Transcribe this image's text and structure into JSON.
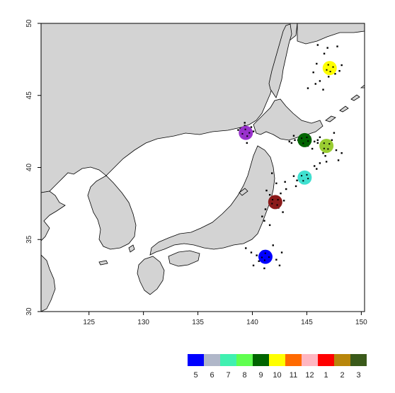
{
  "map": {
    "colors": {
      "land": "#d3d3d3",
      "coast": "#000000",
      "sea": "#ffffff",
      "frame": "#000000"
    },
    "lon_range": [
      120.6,
      150.3
    ],
    "lat_range": [
      30,
      50
    ],
    "x_ticks": [
      {
        "value": 125,
        "label": "125"
      },
      {
        "value": 130,
        "label": "130"
      },
      {
        "value": 135,
        "label": "135"
      },
      {
        "value": 140,
        "label": "140"
      },
      {
        "value": 145,
        "label": "145"
      },
      {
        "value": 150,
        "label": "150"
      }
    ],
    "y_ticks": [
      {
        "value": 30,
        "label": "30"
      },
      {
        "value": 35,
        "label": "35"
      },
      {
        "value": 40,
        "label": "40"
      },
      {
        "value": 45,
        "label": "45"
      },
      {
        "value": 50,
        "label": "50"
      }
    ],
    "centroids": [
      {
        "month": "5",
        "color": "#0000ff",
        "lon": 141.2,
        "lat": 33.8
      },
      {
        "month": "8",
        "color": "#9acd32",
        "lon": 146.8,
        "lat": 41.5
      },
      {
        "month": "7",
        "color": "#40e0d0",
        "lon": 144.8,
        "lat": 39.3
      },
      {
        "month": "9",
        "color": "#006400",
        "lon": 144.8,
        "lat": 41.9
      },
      {
        "month": "10",
        "color": "#ffff00",
        "lon": 147.1,
        "lat": 46.9
      },
      {
        "month": "1",
        "color": "#8b1a1a",
        "lon": 142.1,
        "lat": 37.6
      },
      {
        "month": "12",
        "color": "#9932cc",
        "lon": 139.4,
        "lat": 42.4
      }
    ],
    "points": [
      [
        147.0,
        46.3
      ],
      [
        147.6,
        46.5
      ],
      [
        146.2,
        46.0
      ],
      [
        145.8,
        45.8
      ],
      [
        148.2,
        47.1
      ],
      [
        146.6,
        47.9
      ],
      [
        145.9,
        47.2
      ],
      [
        146.9,
        48.3
      ],
      [
        147.8,
        48.4
      ],
      [
        145.1,
        45.5
      ],
      [
        145.6,
        46.6
      ],
      [
        146.5,
        45.4
      ],
      [
        148.0,
        46.7
      ],
      [
        146.0,
        48.5
      ],
      [
        138.9,
        42.7
      ],
      [
        139.1,
        42.3
      ],
      [
        139.7,
        42.1
      ],
      [
        139.3,
        42.9
      ],
      [
        139.9,
        42.8
      ],
      [
        138.7,
        42.6
      ],
      [
        140.1,
        42.5
      ],
      [
        139.5,
        41.7
      ],
      [
        139.3,
        43.1
      ],
      [
        143.9,
        41.9
      ],
      [
        143.6,
        41.7
      ],
      [
        144.2,
        41.9
      ],
      [
        145.3,
        42.1
      ],
      [
        145.7,
        41.8
      ],
      [
        143.8,
        42.2
      ],
      [
        144.6,
        41.6
      ],
      [
        143.4,
        41.8
      ],
      [
        145.1,
        41.5
      ],
      [
        146.0,
        41.9
      ],
      [
        146.0,
        41.7
      ],
      [
        146.5,
        41.0
      ],
      [
        147.3,
        41.9
      ],
      [
        147.7,
        41.2
      ],
      [
        148.2,
        41.0
      ],
      [
        146.2,
        42.1
      ],
      [
        147.5,
        42.4
      ],
      [
        146.7,
        40.8
      ],
      [
        145.5,
        41.3
      ],
      [
        147.9,
        40.5
      ],
      [
        144.1,
        39.1
      ],
      [
        144.6,
        38.9
      ],
      [
        145.3,
        39.5
      ],
      [
        145.7,
        40.1
      ],
      [
        146.2,
        40.3
      ],
      [
        144.0,
        38.7
      ],
      [
        143.8,
        39.4
      ],
      [
        146.8,
        40.4
      ],
      [
        145.9,
        39.9
      ],
      [
        141.3,
        38.4
      ],
      [
        141.6,
        38.1
      ],
      [
        141.9,
        37.9
      ],
      [
        142.4,
        37.2
      ],
      [
        142.8,
        36.9
      ],
      [
        141.2,
        37.1
      ],
      [
        140.9,
        36.6
      ],
      [
        141.6,
        36.0
      ],
      [
        141.1,
        36.3
      ],
      [
        142.6,
        38.2
      ],
      [
        142.9,
        37.7
      ],
      [
        143.1,
        38.5
      ],
      [
        142.2,
        38.9
      ],
      [
        143.0,
        39.0
      ],
      [
        141.8,
        39.6
      ],
      [
        141.0,
        34.2
      ],
      [
        141.6,
        34.0
      ],
      [
        140.4,
        33.9
      ],
      [
        142.2,
        33.6
      ],
      [
        142.5,
        33.2
      ],
      [
        140.6,
        33.5
      ],
      [
        139.9,
        34.1
      ],
      [
        141.9,
        34.6
      ],
      [
        142.7,
        34.1
      ],
      [
        139.4,
        34.4
      ],
      [
        141.1,
        33.0
      ],
      [
        140.1,
        33.2
      ]
    ]
  },
  "legend": {
    "items": [
      {
        "label": "5",
        "color": "#0000ff"
      },
      {
        "label": "6",
        "color": "#b0b7c9"
      },
      {
        "label": "7",
        "color": "#40f0b0"
      },
      {
        "label": "8",
        "color": "#60ff50"
      },
      {
        "label": "9",
        "color": "#006400"
      },
      {
        "label": "10",
        "color": "#ffff00"
      },
      {
        "label": "11",
        "color": "#ff6a00"
      },
      {
        "label": "12",
        "color": "#ffb6c1"
      },
      {
        "label": "1",
        "color": "#ff0000"
      },
      {
        "label": "2",
        "color": "#b8860b"
      },
      {
        "label": "3",
        "color": "#3a5a1a"
      }
    ]
  }
}
